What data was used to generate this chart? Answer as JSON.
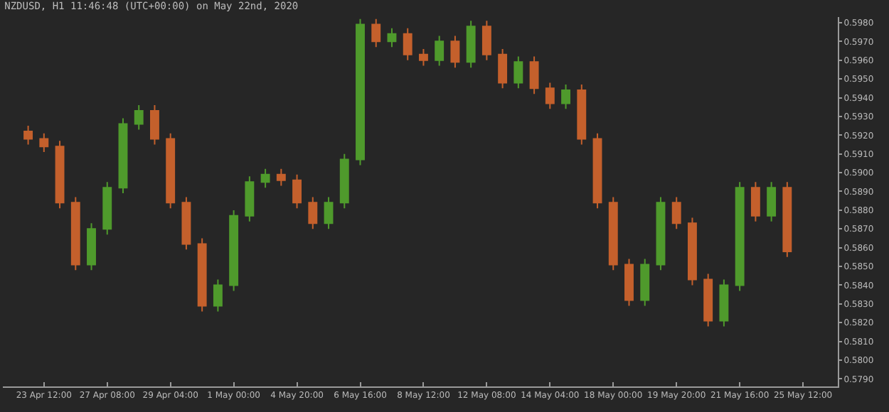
{
  "chart_data": {
    "type": "candlestick",
    "title": "NZDUSD, H1 11:46:48 (UTC+00:00) on May 22nd, 2020",
    "categories": [
      null,
      "23 Apr 12:00",
      null,
      null,
      null,
      "27 Apr 08:00",
      null,
      null,
      null,
      "29 Apr 04:00",
      null,
      null,
      null,
      "1 May 00:00",
      null,
      null,
      null,
      "4 May 20:00",
      null,
      null,
      null,
      "6 May 16:00",
      null,
      null,
      null,
      "8 May 12:00",
      null,
      null,
      null,
      "12 May 08:00",
      null,
      null,
      null,
      "14 May 04:00",
      null,
      null,
      null,
      "18 May 00:00",
      null,
      null,
      null,
      "19 May 20:00",
      null,
      null,
      null,
      "21 May 16:00",
      null,
      null,
      null,
      "25 May 12:00"
    ],
    "ohlc": [
      [
        0.5922,
        0.5925,
        0.5915,
        0.5918
      ],
      [
        0.5918,
        0.5921,
        0.5911,
        0.5914
      ],
      [
        0.5914,
        0.5917,
        0.5881,
        0.5884
      ],
      [
        0.5884,
        0.5887,
        0.5848,
        0.5851
      ],
      [
        0.5851,
        0.5873,
        0.5848,
        0.587
      ],
      [
        0.587,
        0.5895,
        0.5867,
        0.5892
      ],
      [
        0.5892,
        0.5929,
        0.5889,
        0.5926
      ],
      [
        0.5926,
        0.5936,
        0.5923,
        0.5933
      ],
      [
        0.5933,
        0.5936,
        0.5915,
        0.5918
      ],
      [
        0.5918,
        0.5921,
        0.5881,
        0.5884
      ],
      [
        0.5884,
        0.5887,
        0.5859,
        0.5862
      ],
      [
        0.5862,
        0.5865,
        0.5826,
        0.5829
      ],
      [
        0.5829,
        0.5843,
        0.5826,
        0.584
      ],
      [
        0.584,
        0.588,
        0.5837,
        0.5877
      ],
      [
        0.5877,
        0.5898,
        0.5874,
        0.5895
      ],
      [
        0.5895,
        0.5902,
        0.5892,
        0.5899
      ],
      [
        0.5899,
        0.5902,
        0.5893,
        0.5896
      ],
      [
        0.5896,
        0.5899,
        0.5881,
        0.5884
      ],
      [
        0.5884,
        0.5887,
        0.587,
        0.5873
      ],
      [
        0.5873,
        0.5887,
        0.587,
        0.5884
      ],
      [
        0.5884,
        0.591,
        0.5881,
        0.5907
      ],
      [
        0.5907,
        0.5982,
        0.5904,
        0.5979
      ],
      [
        0.5979,
        0.5982,
        0.5967,
        0.597
      ],
      [
        0.597,
        0.5977,
        0.5967,
        0.5974
      ],
      [
        0.5974,
        0.5977,
        0.596,
        0.5963
      ],
      [
        0.5963,
        0.5966,
        0.5957,
        0.596
      ],
      [
        0.596,
        0.5973,
        0.5957,
        0.597
      ],
      [
        0.597,
        0.5973,
        0.5956,
        0.5959
      ],
      [
        0.5959,
        0.5981,
        0.5956,
        0.5978
      ],
      [
        0.5978,
        0.5981,
        0.596,
        0.5963
      ],
      [
        0.5963,
        0.5966,
        0.5945,
        0.5948
      ],
      [
        0.5948,
        0.5962,
        0.5945,
        0.5959
      ],
      [
        0.5959,
        0.5962,
        0.5942,
        0.5945
      ],
      [
        0.5945,
        0.5948,
        0.5934,
        0.5937
      ],
      [
        0.5937,
        0.5947,
        0.5934,
        0.5944
      ],
      [
        0.5944,
        0.5947,
        0.5915,
        0.5918
      ],
      [
        0.5918,
        0.5921,
        0.5881,
        0.5884
      ],
      [
        0.5884,
        0.5887,
        0.5848,
        0.5851
      ],
      [
        0.5851,
        0.5854,
        0.5829,
        0.5832
      ],
      [
        0.5832,
        0.5854,
        0.5829,
        0.5851
      ],
      [
        0.5851,
        0.5887,
        0.5848,
        0.5884
      ],
      [
        0.5884,
        0.5887,
        0.587,
        0.5873
      ],
      [
        0.5873,
        0.5876,
        0.584,
        0.5843
      ],
      [
        0.5843,
        0.5846,
        0.5818,
        0.5821
      ],
      [
        0.5821,
        0.5843,
        0.5818,
        0.584
      ],
      [
        0.584,
        0.5895,
        0.5837,
        0.5892
      ],
      [
        0.5892,
        0.5895,
        0.5874,
        0.5877
      ],
      [
        0.5877,
        0.5895,
        0.5874,
        0.5892
      ],
      [
        0.5892,
        0.5895,
        0.5855,
        0.5858
      ],
      null
    ],
    "ylim": [
      0.5786,
      0.5983
    ],
    "yticks": [
      {
        "value": 0.579,
        "label": "0.5790"
      },
      {
        "value": 0.58,
        "label": "0.5800"
      },
      {
        "value": 0.581,
        "label": "0.5810"
      },
      {
        "value": 0.582,
        "label": "0.5820"
      },
      {
        "value": 0.583,
        "label": "0.5830"
      },
      {
        "value": 0.584,
        "label": "0.5840"
      },
      {
        "value": 0.585,
        "label": "0.5850"
      },
      {
        "value": 0.586,
        "label": "0.5860"
      },
      {
        "value": 0.587,
        "label": "0.5870"
      },
      {
        "value": 0.588,
        "label": "0.5880"
      },
      {
        "value": 0.589,
        "label": "0.5890"
      },
      {
        "value": 0.59,
        "label": "0.5900"
      },
      {
        "value": 0.591,
        "label": "0.5910"
      },
      {
        "value": 0.592,
        "label": "0.5920"
      },
      {
        "value": 0.593,
        "label": "0.5930"
      },
      {
        "value": 0.594,
        "label": "0.5940"
      },
      {
        "value": 0.595,
        "label": "0.5950"
      },
      {
        "value": 0.596,
        "label": "0.5960"
      },
      {
        "value": 0.597,
        "label": "0.5970"
      },
      {
        "value": 0.598,
        "label": "0.5980"
      }
    ],
    "grid": false
  }
}
